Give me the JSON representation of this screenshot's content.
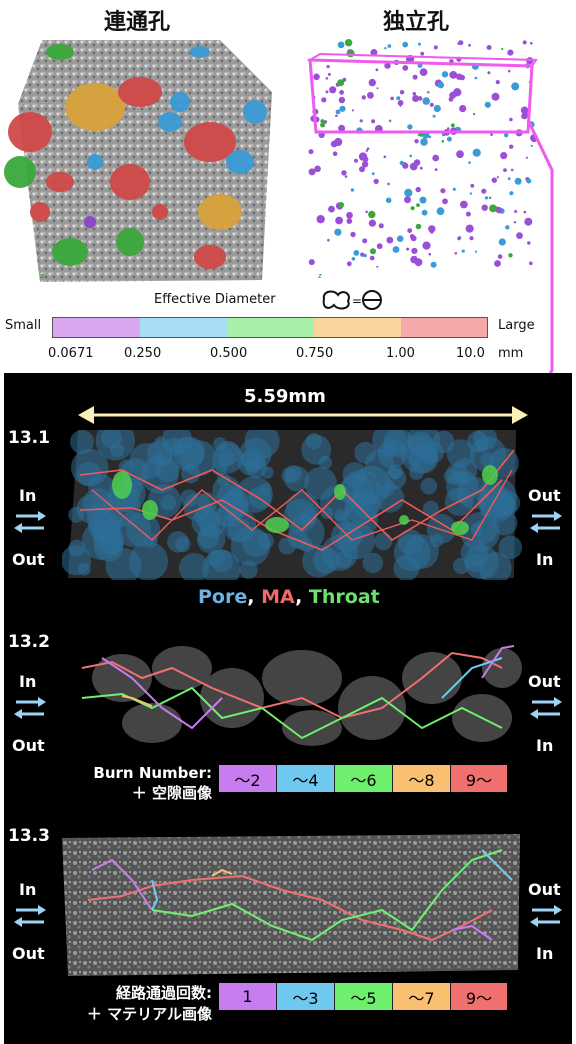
{
  "header": {
    "left_title": "連通孔",
    "right_title": "独立孔"
  },
  "scale": {
    "title": "Effective Diameter",
    "small_label": "Small",
    "large_label": "Large",
    "colors": [
      "#d9a7ef",
      "#a9dcf5",
      "#a8f0a8",
      "#fbd59e",
      "#f7a8a8"
    ],
    "ticks": [
      "0.0671",
      "0.250",
      "0.500",
      "0.750",
      "1.00",
      "10.0"
    ],
    "unit": "mm"
  },
  "panel": {
    "dimension_label": "5.59mm",
    "sections": [
      {
        "id": "13.1",
        "left_top": "In",
        "left_bottom": "Out",
        "right_top": "Out",
        "right_bottom": "In"
      },
      {
        "id": "13.2",
        "left_top": "In",
        "left_bottom": "Out",
        "right_top": "Out",
        "right_bottom": "In"
      },
      {
        "id": "13.3",
        "left_top": "In",
        "left_bottom": "Out",
        "right_top": "Out",
        "right_bottom": "In"
      }
    ],
    "pma_legend": {
      "pore": "Pore",
      "sep1": ", ",
      "ma": "MA",
      "sep2": ", ",
      "throat": "Throat",
      "pore_color": "#6fb3e6",
      "ma_color": "#f06a6a",
      "throat_color": "#6ee06e"
    },
    "burn_legend": {
      "caption_line1": "Burn Number:",
      "caption_line2": "＋ 空隙画像",
      "items": [
        "～2",
        "～4",
        "～6",
        "～8",
        "9～"
      ],
      "colors": [
        "#c77cf0",
        "#6fc8f0",
        "#6ef06e",
        "#f8c070",
        "#f07070"
      ]
    },
    "route_legend": {
      "caption_line1": "経路通過回数:",
      "caption_line2": "＋ マテリアル画像",
      "items": [
        "1",
        "～3",
        "～5",
        "～7",
        "9～"
      ],
      "colors": [
        "#c77cf0",
        "#6fc8f0",
        "#6ef06e",
        "#f8c070",
        "#f07070"
      ]
    }
  }
}
